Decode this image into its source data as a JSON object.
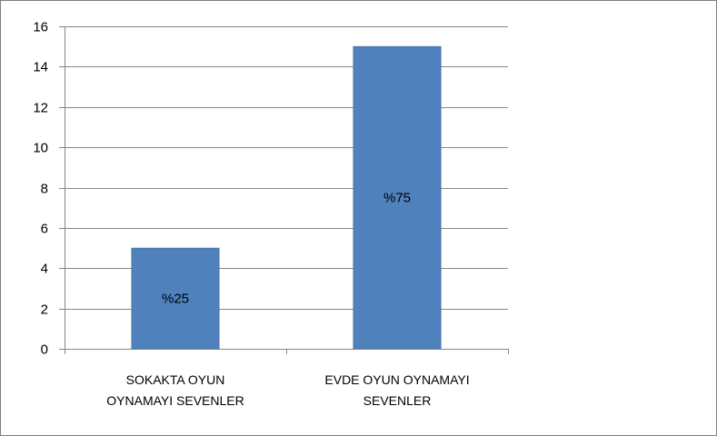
{
  "chart_data": {
    "type": "bar",
    "title": "",
    "xlabel": "",
    "ylabel": "",
    "categories": [
      [
        "SOKAKTA OYUN",
        "OYNAMAYI SEVENLER"
      ],
      [
        "EVDE OYUN OYNAMAYI",
        "SEVENLER"
      ]
    ],
    "values": [
      5,
      15
    ],
    "data_labels": [
      "%25",
      "%75"
    ],
    "ylim": [
      0,
      16
    ],
    "yticks": [
      0,
      2,
      4,
      6,
      8,
      10,
      12,
      14,
      16
    ],
    "grid": true,
    "legend": "none",
    "bar_color": "#4f81bd",
    "bar_border_color": "#3c6496",
    "grid_color": "#878787",
    "axis_color": "#878787"
  }
}
